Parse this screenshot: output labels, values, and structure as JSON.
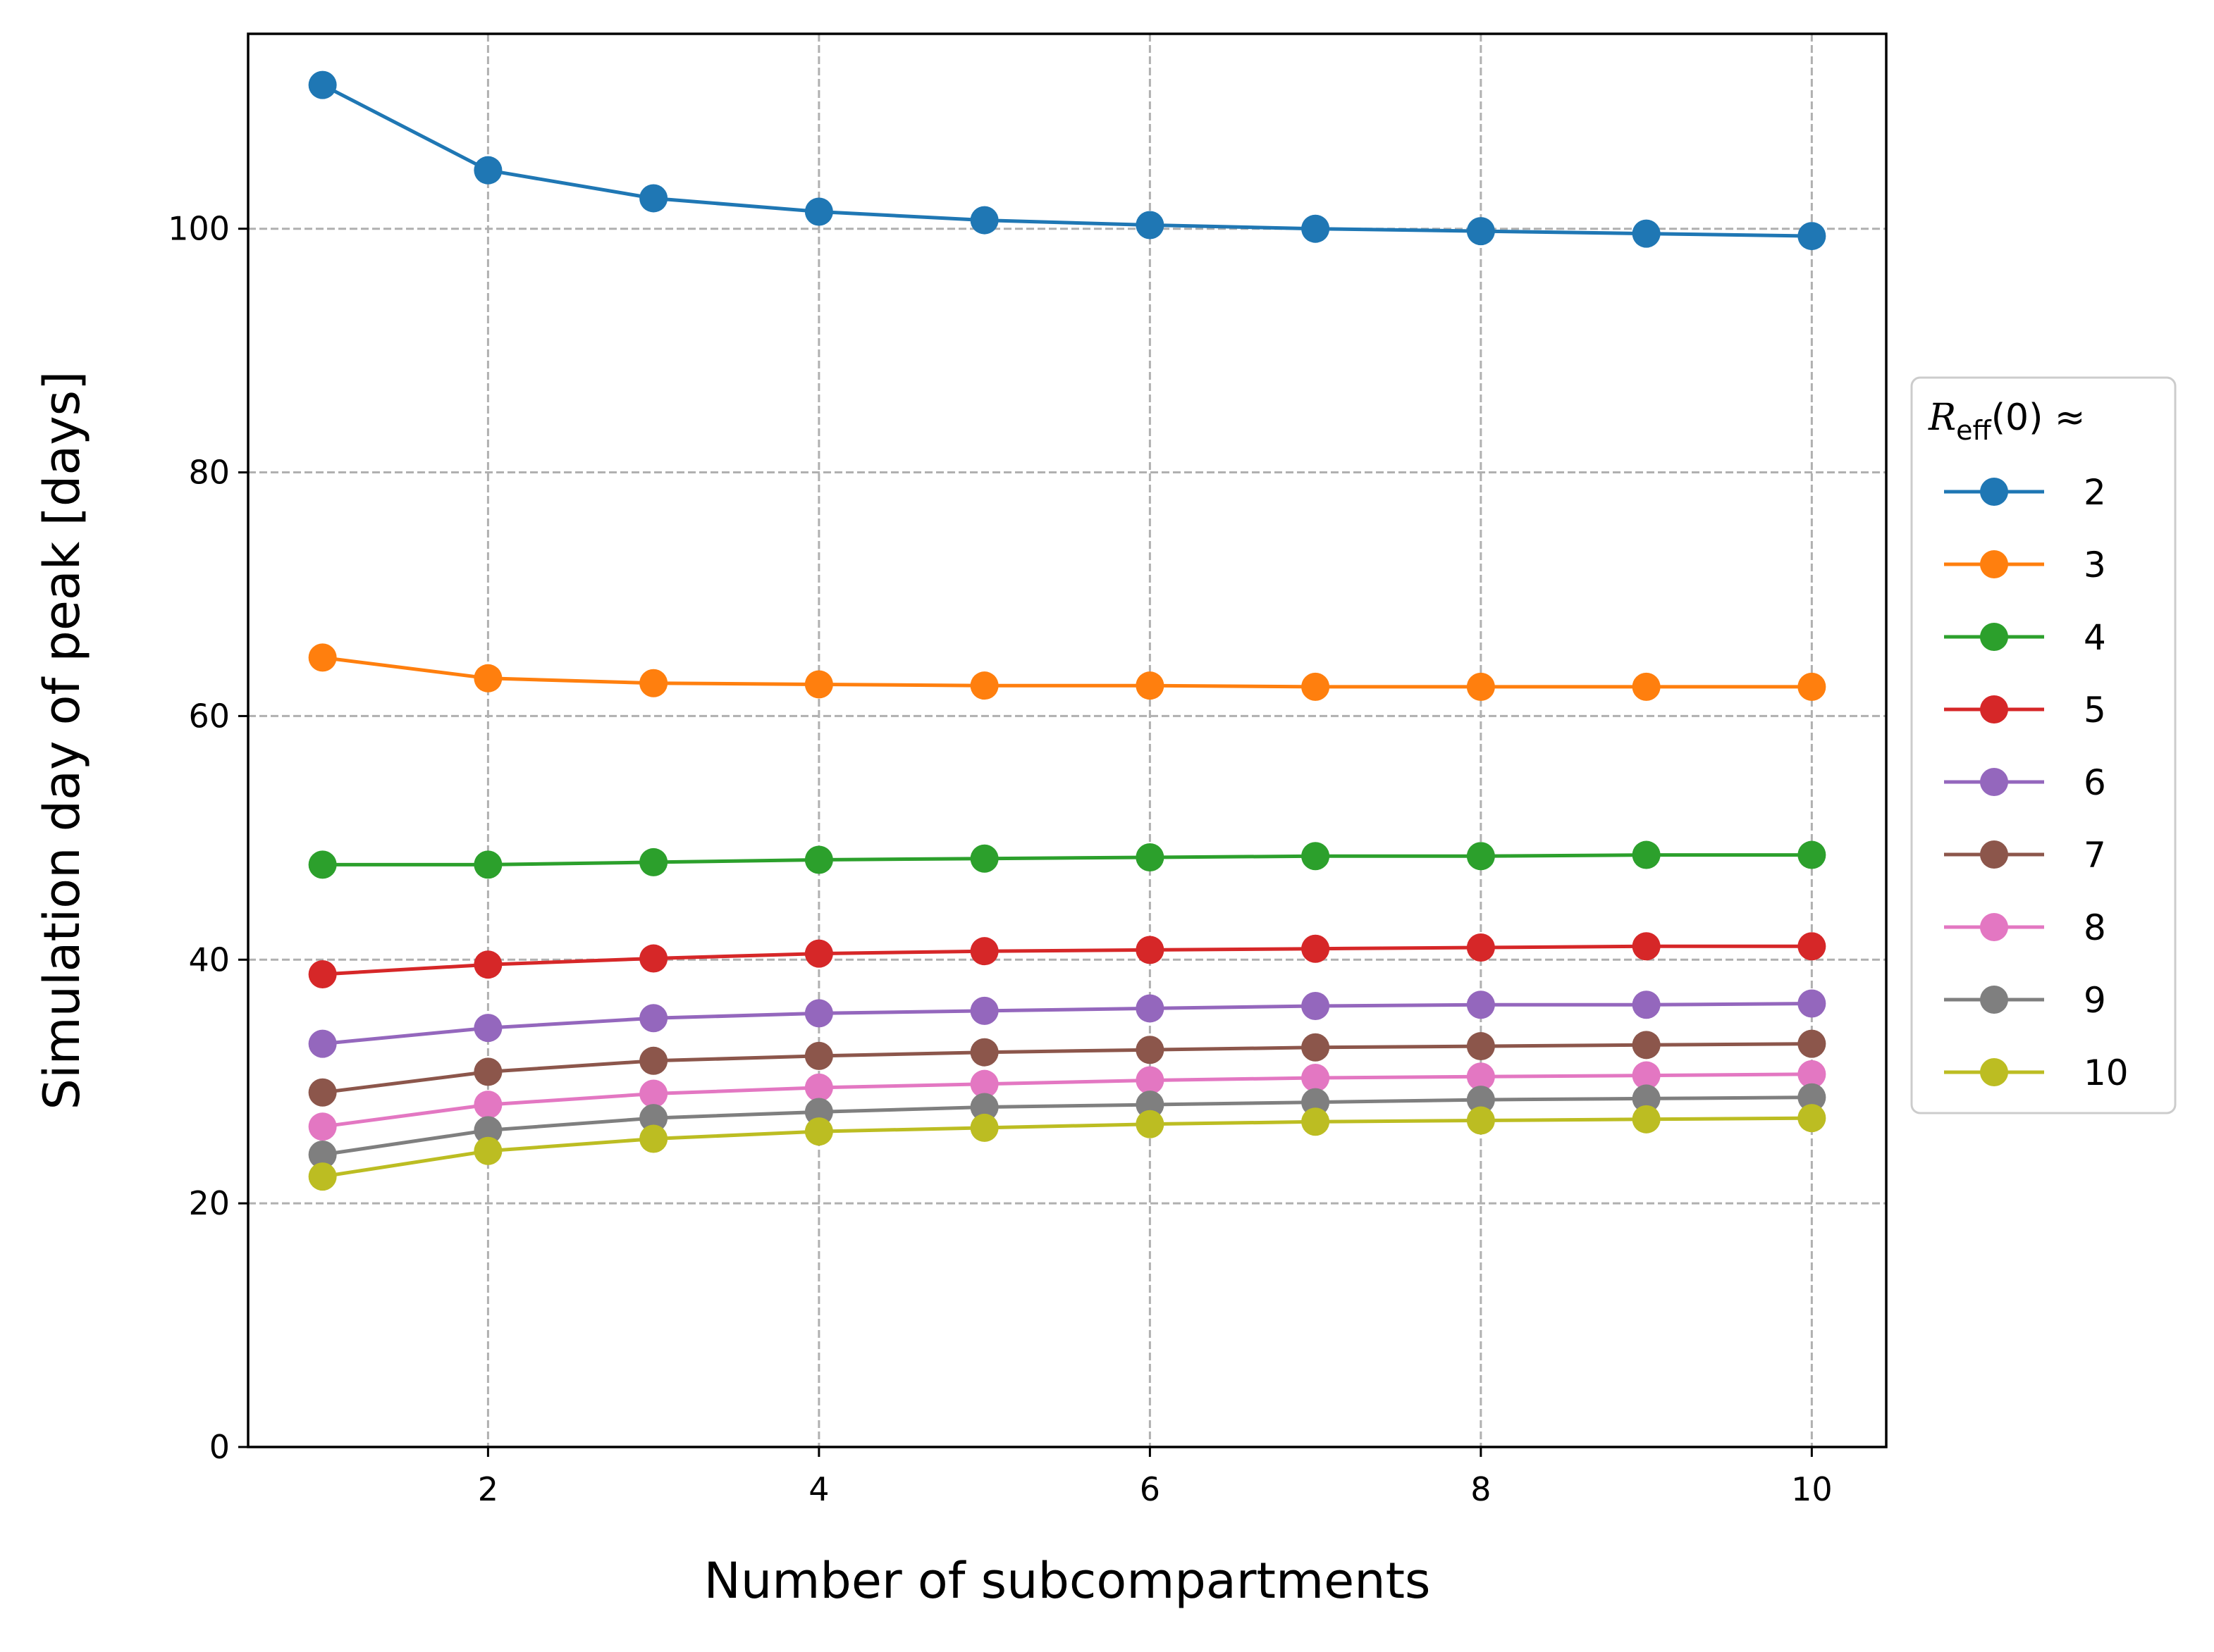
{
  "chart_data": {
    "type": "line",
    "title": "",
    "xlabel": "Number of subcompartments",
    "ylabel": "Simulation day of peak [days]",
    "xlim": [
      0.55,
      10.45
    ],
    "ylim": [
      0,
      116
    ],
    "xticks": [
      2,
      4,
      6,
      8,
      10
    ],
    "yticks": [
      0,
      20,
      40,
      60,
      80,
      100
    ],
    "grid": true,
    "legend_position": "center-right-outside",
    "legend_title": {
      "main": "R",
      "subscript": "eff",
      "suffix": "(0) ≈"
    },
    "x": [
      1,
      2,
      3,
      4,
      5,
      6,
      7,
      8,
      9,
      10
    ],
    "series": [
      {
        "name": "2",
        "color": "#1f77b4",
        "values": [
          111.8,
          104.8,
          102.5,
          101.4,
          100.7,
          100.3,
          100.0,
          99.8,
          99.6,
          99.4
        ]
      },
      {
        "name": "3",
        "color": "#ff7f0e",
        "values": [
          64.8,
          63.1,
          62.7,
          62.6,
          62.5,
          62.5,
          62.4,
          62.4,
          62.4,
          62.4
        ]
      },
      {
        "name": "4",
        "color": "#2ca02c",
        "values": [
          47.8,
          47.8,
          48.0,
          48.2,
          48.3,
          48.4,
          48.5,
          48.5,
          48.6,
          48.6
        ]
      },
      {
        "name": "5",
        "color": "#d62728",
        "values": [
          38.8,
          39.6,
          40.1,
          40.5,
          40.7,
          40.8,
          40.9,
          41.0,
          41.1,
          41.1
        ]
      },
      {
        "name": "6",
        "color": "#9467bd",
        "values": [
          33.1,
          34.4,
          35.2,
          35.6,
          35.8,
          36.0,
          36.2,
          36.3,
          36.3,
          36.4
        ]
      },
      {
        "name": "7",
        "color": "#8c564b",
        "values": [
          29.1,
          30.8,
          31.7,
          32.1,
          32.4,
          32.6,
          32.8,
          32.9,
          33.0,
          33.1
        ]
      },
      {
        "name": "8",
        "color": "#e377c2",
        "values": [
          26.3,
          28.1,
          29.0,
          29.5,
          29.8,
          30.1,
          30.3,
          30.4,
          30.5,
          30.6
        ]
      },
      {
        "name": "9",
        "color": "#7f7f7f",
        "values": [
          24.0,
          26.0,
          27.0,
          27.5,
          27.9,
          28.1,
          28.3,
          28.5,
          28.6,
          28.7
        ]
      },
      {
        "name": "10",
        "color": "#bcbd22",
        "values": [
          22.2,
          24.3,
          25.3,
          25.9,
          26.2,
          26.5,
          26.7,
          26.8,
          26.9,
          27.0
        ]
      }
    ]
  }
}
